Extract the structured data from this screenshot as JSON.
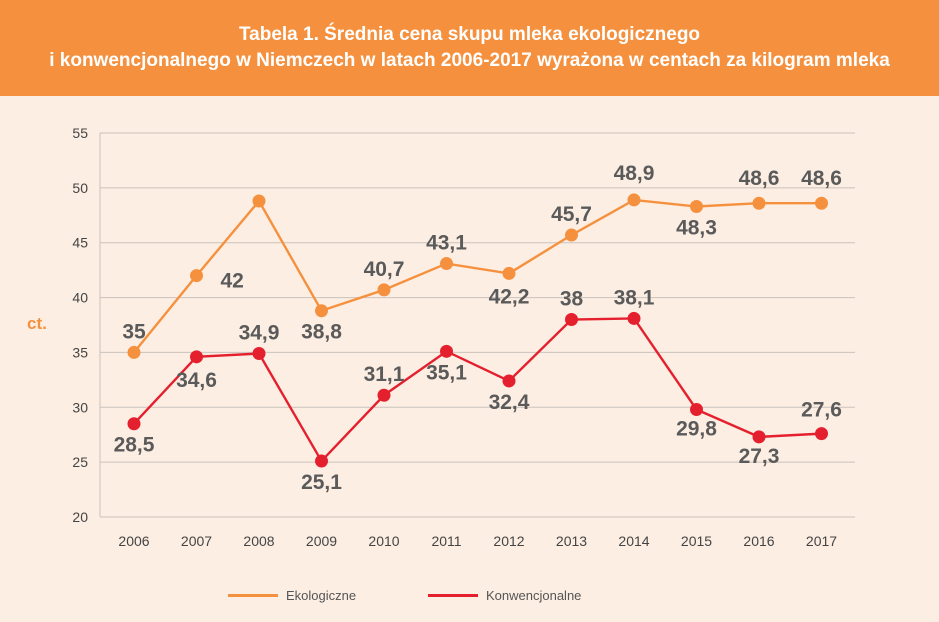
{
  "title": {
    "line1": "Tabela 1. Średnia cena skupu mleka ekologicznego",
    "line2": "i konwencjonalnego w Niemczech w latach 2006-2017 wyrażona w centach za kilogram mleka"
  },
  "colors": {
    "title_bg": "#f5913e",
    "background": "#fdeee3",
    "eco": "#f5913e",
    "conv": "#e5202e",
    "label": "#5a5a5a",
    "axis_unit": "#f5913e"
  },
  "chart_data": {
    "type": "line",
    "title": "Tabela 1. Średnia cena skupu mleka ekologicznego i konwencjonalnego w Niemczech w latach 2006-2017 wyrażona w centach za kilogram mleka",
    "xlabel": "",
    "ylabel": "ct.",
    "ylim": [
      20,
      55
    ],
    "yticks": [
      "20",
      "25",
      "30",
      "35",
      "40",
      "45",
      "50",
      "55"
    ],
    "categories": [
      "2006",
      "2007",
      "2008",
      "2009",
      "2010",
      "2011",
      "2012",
      "2013",
      "2014",
      "2015",
      "2016",
      "2017"
    ],
    "grid": true,
    "legend_position": "bottom",
    "series": [
      {
        "name": "Ekologiczne",
        "values": [
          35,
          42,
          48.8,
          38.8,
          40.7,
          43.1,
          42.2,
          45.7,
          48.9,
          48.3,
          48.6,
          48.6
        ],
        "labels": [
          "35",
          "42",
          "",
          "38,8",
          "40,7",
          "43,1",
          "42,2",
          "45,7",
          "48,9",
          "48,3",
          "48,6",
          "48,6"
        ]
      },
      {
        "name": "Konwencjonalne",
        "values": [
          28.5,
          34.6,
          34.9,
          25.1,
          31.1,
          35.1,
          32.4,
          38,
          38.1,
          29.8,
          27.3,
          27.6
        ],
        "labels": [
          "28,5",
          "34,6",
          "34,9",
          "25,1",
          "31,1",
          "35,1",
          "32,4",
          "38",
          "38,1",
          "29,8",
          "27,3",
          "27,6"
        ]
      }
    ]
  }
}
